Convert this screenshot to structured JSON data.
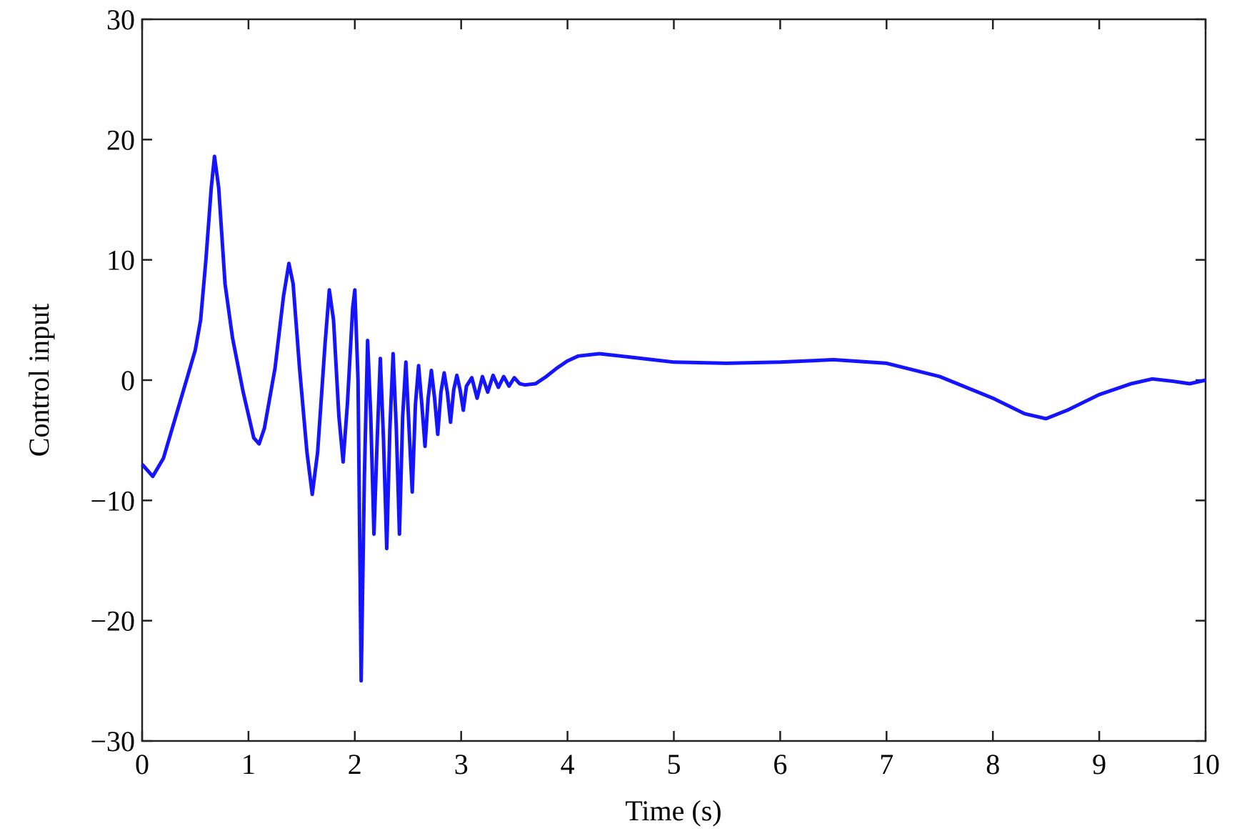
{
  "chart_data": {
    "type": "line",
    "x_label": "Time (s)",
    "y_label": "Control input",
    "xlim": [
      0,
      10
    ],
    "ylim": [
      -30,
      30
    ],
    "xticks": [
      0,
      1,
      2,
      3,
      4,
      5,
      6,
      7,
      8,
      9,
      10
    ],
    "yticks": [
      {
        "value": -30,
        "label": "−30"
      },
      {
        "value": -20,
        "label": "−20"
      },
      {
        "value": -10,
        "label": "−10"
      },
      0,
      10,
      20,
      30
    ],
    "series": [
      {
        "color": "#1414ff",
        "x": [
          0,
          0.1,
          0.2,
          0.3,
          0.4,
          0.5,
          0.55,
          0.6,
          0.65,
          0.68,
          0.72,
          0.78,
          0.85,
          0.95,
          1.05,
          1.1,
          1.15,
          1.25,
          1.33,
          1.38,
          1.42,
          1.48,
          1.55,
          1.6,
          1.65,
          1.72,
          1.76,
          1.8,
          1.85,
          1.89,
          1.93,
          1.98,
          2.0,
          2.03,
          2.06,
          2.09,
          2.12,
          2.15,
          2.18,
          2.21,
          2.24,
          2.27,
          2.3,
          2.33,
          2.36,
          2.39,
          2.42,
          2.45,
          2.48,
          2.51,
          2.54,
          2.57,
          2.6,
          2.63,
          2.66,
          2.69,
          2.72,
          2.75,
          2.78,
          2.81,
          2.84,
          2.87,
          2.9,
          2.93,
          2.96,
          2.99,
          3.02,
          3.05,
          3.1,
          3.15,
          3.2,
          3.25,
          3.3,
          3.35,
          3.4,
          3.45,
          3.5,
          3.55,
          3.6,
          3.7,
          3.8,
          3.9,
          4.0,
          4.1,
          4.3,
          4.5,
          5,
          5.5,
          6,
          6.5,
          7,
          7.5,
          8,
          8.3,
          8.5,
          8.7,
          9,
          9.3,
          9.5,
          9.7,
          9.85,
          10
        ],
        "values": [
          -7,
          -8,
          -6.5,
          -3.5,
          -0.5,
          2.5,
          5,
          10,
          16,
          18.6,
          16,
          8,
          3.5,
          -1,
          -4.8,
          -5.3,
          -4,
          1,
          7,
          9.7,
          8,
          1,
          -6,
          -9.5,
          -6,
          3,
          7.5,
          5,
          -3,
          -6.8,
          -2,
          6,
          7.5,
          0,
          -25,
          -8,
          3.3,
          -3,
          -12.8,
          -5,
          1.8,
          -5,
          -14,
          -4,
          2.2,
          -4,
          -12.8,
          -3,
          1.5,
          -4,
          -9.3,
          -2,
          1.2,
          -2,
          -5.5,
          -1.5,
          0.8,
          -1.5,
          -4.5,
          -1,
          0.6,
          -1,
          -3.5,
          -0.8,
          0.4,
          -0.8,
          -2.5,
          -0.5,
          0.2,
          -1.5,
          0.3,
          -1,
          0.4,
          -0.6,
          0.3,
          -0.5,
          0.2,
          -0.3,
          -0.4,
          -0.3,
          0.3,
          1,
          1.6,
          2,
          2.2,
          2,
          1.5,
          1.4,
          1.5,
          1.7,
          1.4,
          0.3,
          -1.5,
          -2.8,
          -3.2,
          -2.5,
          -1.2,
          -0.3,
          0.1,
          -0.1,
          -0.3,
          0
        ]
      }
    ]
  }
}
